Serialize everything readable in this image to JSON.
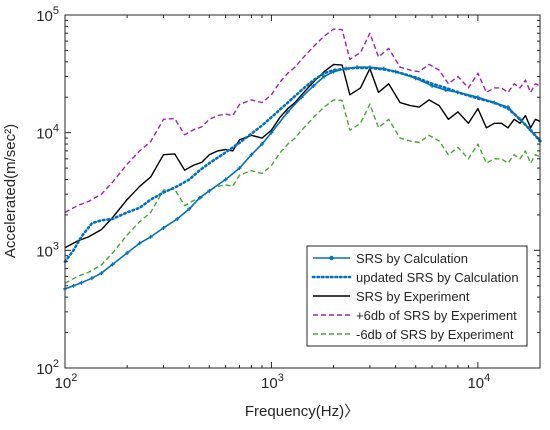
{
  "chart_data": {
    "type": "line",
    "title": "",
    "xlabel": "Frequency(Hz)〉",
    "ylabel": "Accelerated(m/sec²)",
    "xscale": "log",
    "yscale": "log",
    "xlim": [
      100,
      20000
    ],
    "ylim": [
      100,
      100000
    ],
    "xticks": [
      {
        "value": 100,
        "mantissa": "10",
        "exponent": "2"
      },
      {
        "value": 1000,
        "mantissa": "10",
        "exponent": "3"
      },
      {
        "value": 10000,
        "mantissa": "10",
        "exponent": "4"
      }
    ],
    "yticks": [
      {
        "value": 100,
        "mantissa": "10",
        "exponent": "2"
      },
      {
        "value": 1000,
        "mantissa": "10",
        "exponent": "3"
      },
      {
        "value": 10000,
        "mantissa": "10",
        "exponent": "4"
      },
      {
        "value": 100000,
        "mantissa": "10",
        "exponent": "5"
      }
    ],
    "grid": false,
    "legend_position": "bottom-right",
    "series": [
      {
        "name": "SRS by Calculation",
        "color": "#0072BD",
        "style": "solid-marker",
        "x": [
          100,
          110,
          120,
          135,
          150,
          170,
          200,
          230,
          260,
          300,
          350,
          400,
          450,
          500,
          600,
          700,
          800,
          900,
          1000,
          1200,
          1400,
          1600,
          1800,
          2000,
          2300,
          2600,
          3000,
          3500,
          4000,
          5000,
          6000,
          7000,
          8000,
          10000,
          12000,
          14000,
          16000,
          18000,
          20000
        ],
        "y": [
          470,
          500,
          530,
          580,
          640,
          760,
          950,
          1150,
          1300,
          1550,
          1850,
          2250,
          2800,
          3200,
          4000,
          5000,
          6500,
          8000,
          10000,
          15000,
          20000,
          25000,
          30000,
          33000,
          35000,
          36000,
          36000,
          35000,
          33000,
          29000,
          25000,
          23000,
          22000,
          20000,
          18000,
          16500,
          13000,
          10500,
          8500
        ]
      },
      {
        "name": "updated SRS by Calculation",
        "color": "#0072BD",
        "style": "dotted",
        "x": [
          100,
          110,
          120,
          135,
          150,
          170,
          200,
          230,
          260,
          300,
          350,
          400,
          450,
          500,
          600,
          700,
          800,
          900,
          1000,
          1200,
          1400,
          1600,
          1800,
          2000,
          2300,
          2600,
          3000,
          3500,
          4000,
          5000,
          6000,
          7000,
          8000,
          10000,
          12000,
          14000,
          16000,
          18000,
          20000
        ],
        "y": [
          800,
          1000,
          1300,
          1700,
          1800,
          1850,
          2100,
          2300,
          2700,
          3100,
          3500,
          4000,
          4800,
          5500,
          6800,
          8200,
          9800,
          11500,
          13500,
          18000,
          23000,
          28000,
          32000,
          34000,
          35000,
          35500,
          35500,
          34500,
          33000,
          29500,
          26000,
          24000,
          22000,
          19500,
          18000,
          16000,
          13000,
          10500,
          8500
        ]
      },
      {
        "name": "SRS by Experiment",
        "color": "#000000",
        "style": "solid",
        "x": [
          100,
          115,
          130,
          150,
          170,
          200,
          230,
          260,
          300,
          340,
          380,
          420,
          460,
          500,
          550,
          600,
          650,
          700,
          800,
          900,
          1000,
          1100,
          1200,
          1300,
          1400,
          1600,
          1800,
          2000,
          2200,
          2400,
          2700,
          3000,
          3300,
          3700,
          4200,
          4700,
          5200,
          5800,
          6500,
          7200,
          8000,
          9000,
          10000,
          11000,
          12000,
          13000,
          14000,
          15000,
          16000,
          17000,
          18000,
          19000,
          20000
        ],
        "y": [
          1050,
          1200,
          1300,
          1500,
          1900,
          2700,
          3500,
          4200,
          6500,
          6600,
          4800,
          5300,
          5600,
          6500,
          7000,
          7200,
          7000,
          8700,
          9500,
          9000,
          10500,
          13500,
          16000,
          18000,
          21000,
          27000,
          33000,
          38000,
          37500,
          21000,
          24000,
          35000,
          22000,
          26000,
          18000,
          17000,
          16500,
          19000,
          17000,
          13000,
          15000,
          12000,
          16000,
          11000,
          12000,
          12000,
          11000,
          13000,
          12000,
          14000,
          11000,
          13000,
          12500
        ]
      },
      {
        "name": "+6db of SRS by Experiment",
        "color": "#A020B0",
        "style": "dashed",
        "x": [
          100,
          115,
          130,
          150,
          170,
          200,
          230,
          260,
          300,
          340,
          380,
          420,
          460,
          500,
          550,
          600,
          650,
          700,
          800,
          900,
          1000,
          1100,
          1200,
          1300,
          1400,
          1600,
          1800,
          2000,
          2200,
          2400,
          2700,
          3000,
          3300,
          3700,
          4200,
          4700,
          5200,
          5800,
          6500,
          7200,
          8000,
          9000,
          10000,
          11000,
          12000,
          13000,
          14000,
          15000,
          16000,
          17000,
          18000,
          19000,
          20000
        ],
        "y": [
          2100,
          2400,
          2600,
          3000,
          3800,
          5400,
          7000,
          8400,
          13000,
          13200,
          9600,
          10600,
          11200,
          13000,
          14000,
          14400,
          14000,
          17400,
          19000,
          18000,
          21000,
          27000,
          32000,
          36000,
          42000,
          54000,
          66000,
          76000,
          75000,
          42000,
          48000,
          70000,
          44000,
          52000,
          36000,
          34000,
          33000,
          38000,
          34000,
          26000,
          30000,
          24000,
          32000,
          22000,
          24000,
          24000,
          22000,
          26000,
          24000,
          28000,
          22000,
          26000,
          25000
        ]
      },
      {
        "name": "-6db of SRS by Experiment",
        "color": "#44A834",
        "style": "dashed",
        "x": [
          100,
          115,
          130,
          150,
          170,
          200,
          230,
          260,
          300,
          340,
          380,
          420,
          460,
          500,
          550,
          600,
          650,
          700,
          800,
          900,
          1000,
          1100,
          1200,
          1300,
          1400,
          1600,
          1800,
          2000,
          2200,
          2400,
          2700,
          3000,
          3300,
          3700,
          4200,
          4700,
          5200,
          5800,
          6500,
          7200,
          8000,
          9000,
          10000,
          11000,
          12000,
          13000,
          14000,
          15000,
          16000,
          17000,
          18000,
          19000,
          20000
        ],
        "y": [
          525,
          600,
          650,
          750,
          950,
          1350,
          1750,
          2100,
          3250,
          3300,
          2400,
          2650,
          2800,
          3250,
          3500,
          3600,
          3500,
          4350,
          4750,
          4500,
          5250,
          6750,
          8000,
          9000,
          10500,
          13500,
          16500,
          19000,
          18750,
          10500,
          12000,
          17500,
          11000,
          13000,
          9000,
          8500,
          8250,
          9500,
          8500,
          6500,
          7500,
          6000,
          8000,
          5500,
          6000,
          6000,
          5500,
          6500,
          6000,
          7000,
          5500,
          6500,
          6250
        ]
      }
    ]
  }
}
